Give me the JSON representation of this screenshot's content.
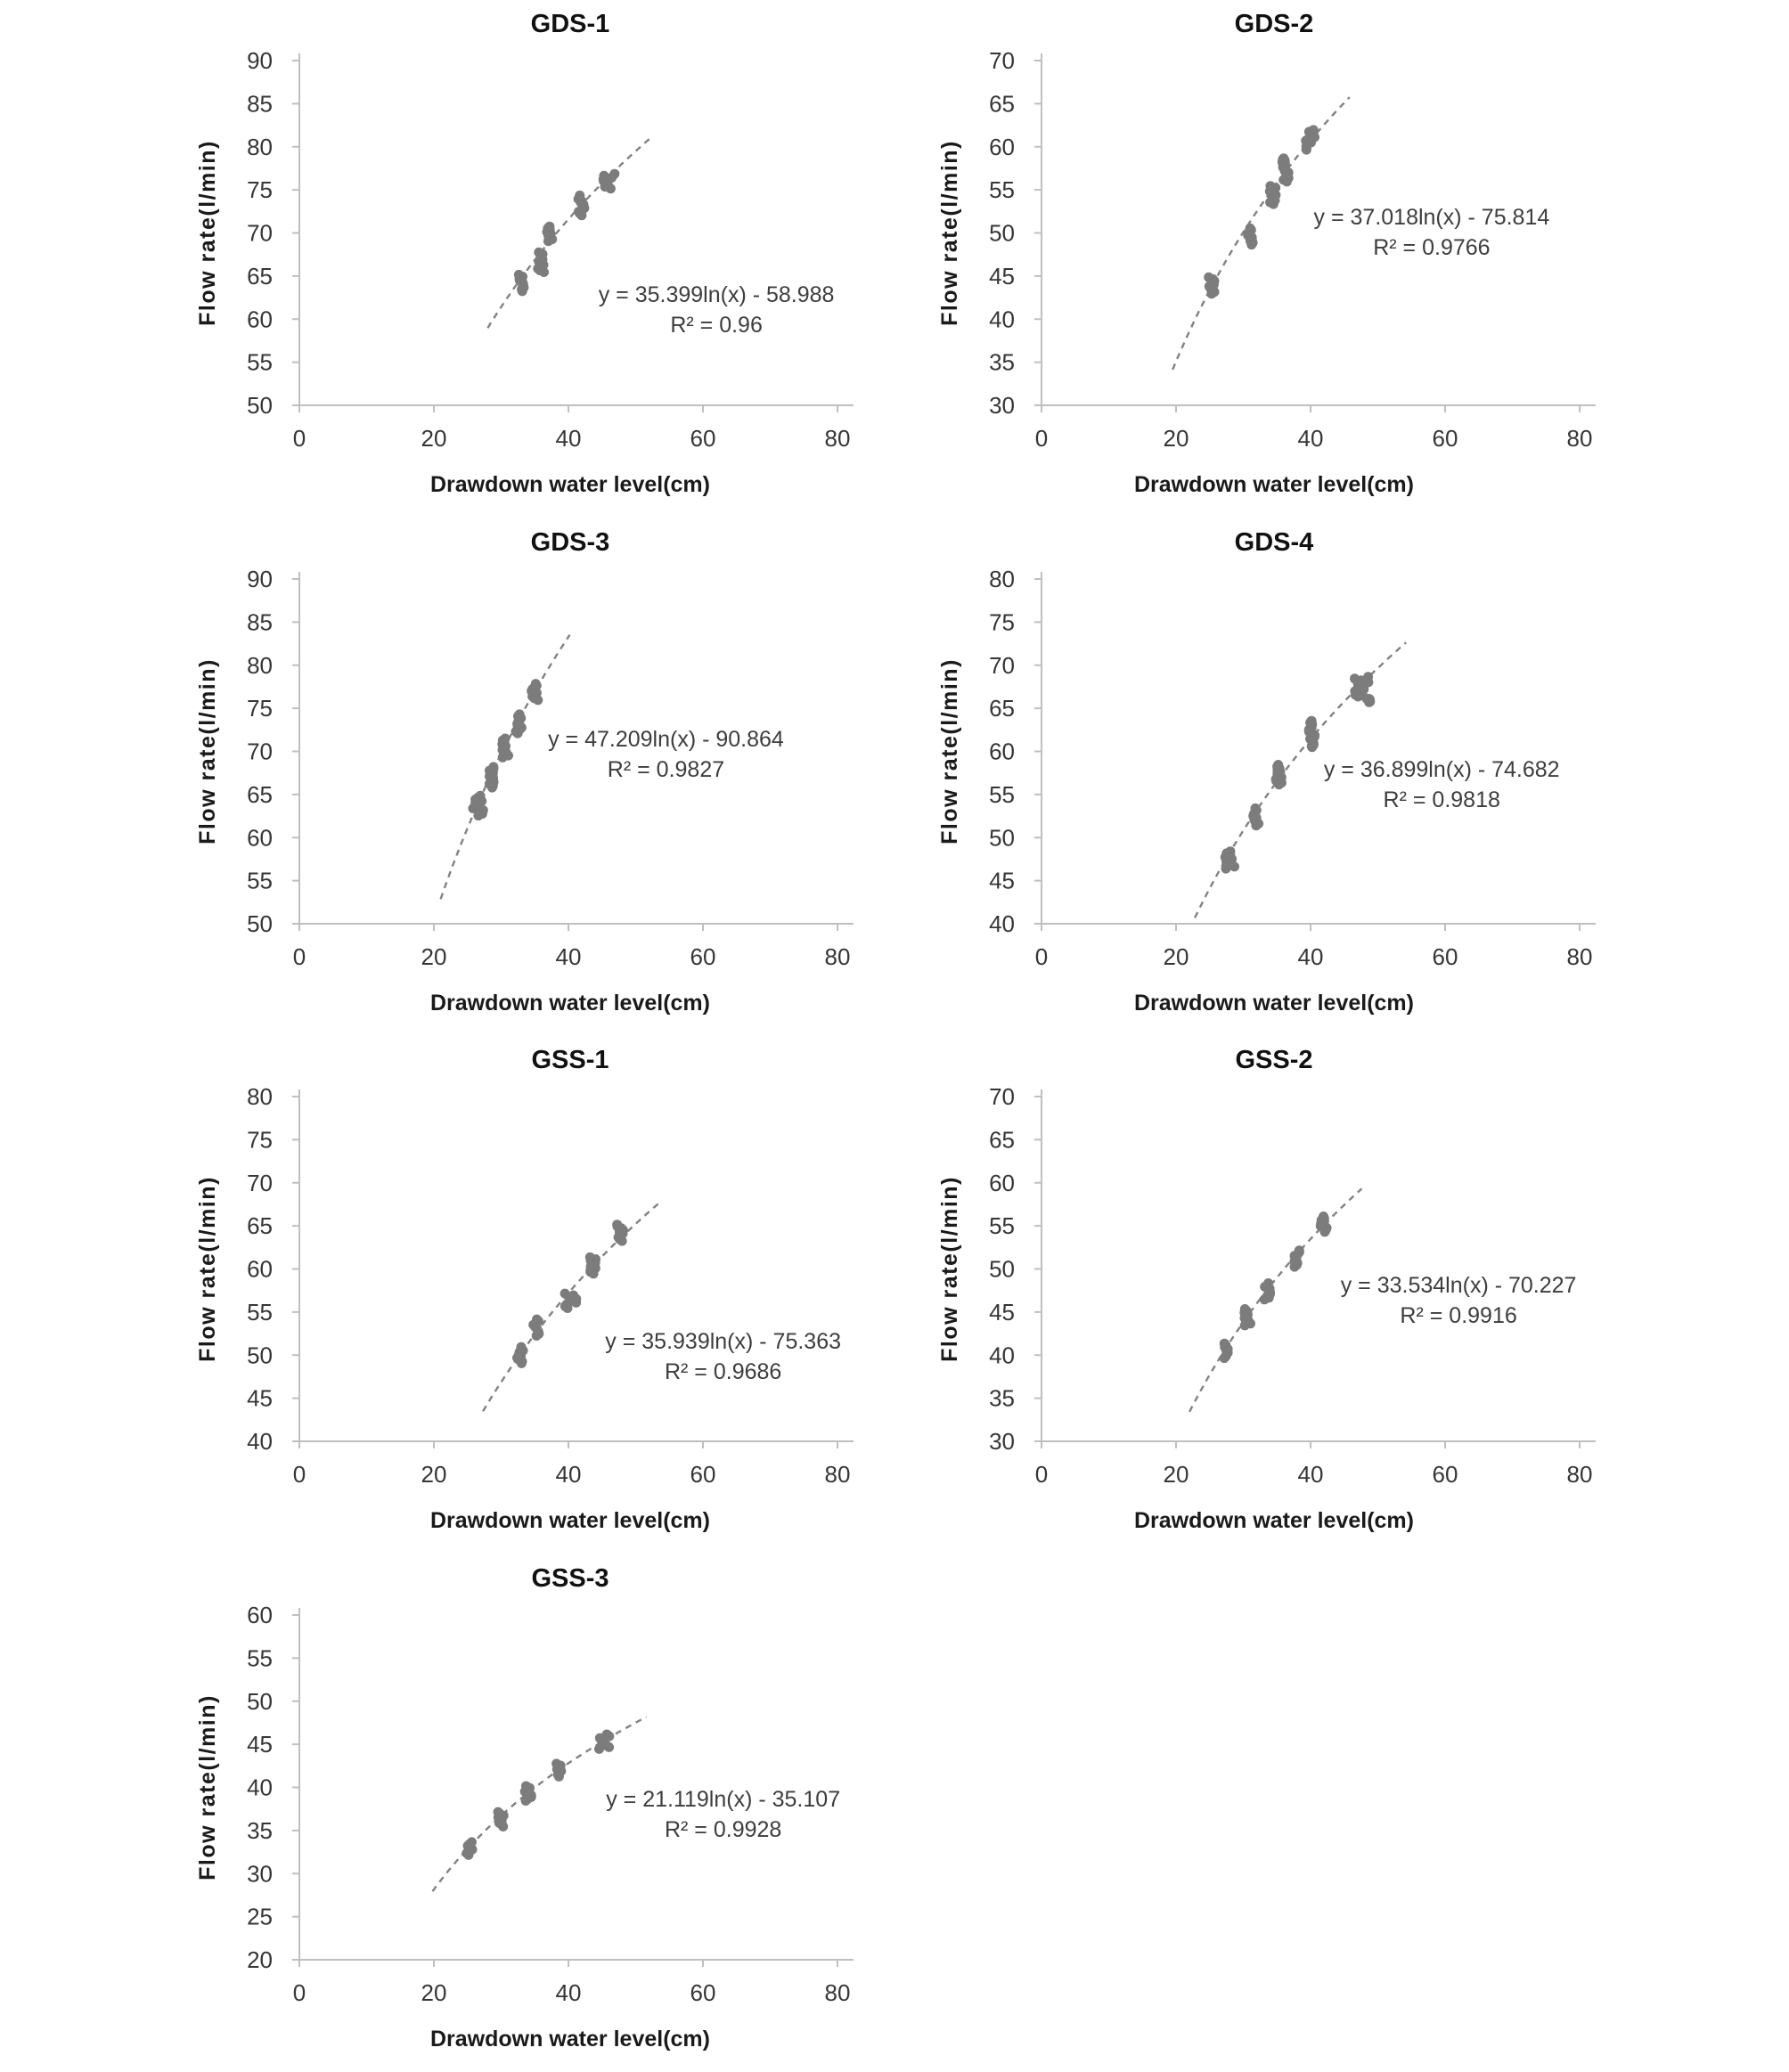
{
  "style": {
    "background": "#ffffff",
    "marker_color": "#7c7c7c",
    "trend_color": "#828282",
    "axis_color": "#bfbfbf",
    "tick_label_color": "#363636",
    "title_color": "#111111",
    "axis_title_color": "#1a1a1a",
    "equation_color": "#3d3d3d"
  },
  "chart_data": [
    {
      "type": "scatter",
      "id": "gds-1",
      "title": "GDS-1",
      "xlabel": "Drawdown water level(cm)",
      "ylabel": "Flow rate(l/min)",
      "column": 1,
      "xlim": [
        0,
        80
      ],
      "xticks": [
        0,
        20,
        40,
        60,
        80
      ],
      "ylim": [
        50,
        90
      ],
      "yticks": [
        50,
        55,
        60,
        65,
        70,
        75,
        80,
        85,
        90
      ],
      "grid": false,
      "legend": "none",
      "trendline": {
        "style": "dashed",
        "model": "logarithmic",
        "a": 35.399,
        "b": -58.988,
        "x_range": [
          28,
          52.2
        ]
      },
      "equation": "y = 35.399ln(x) - 58.988",
      "r2_label": "R² = 0.96",
      "equation_anchor": [
        62,
        62.8
      ],
      "clusters": [
        {
          "x": 33,
          "y": 64.2,
          "h": 1.9
        },
        {
          "x": 35.9,
          "y": 66.6,
          "h": 2.3
        },
        {
          "x": 37.2,
          "y": 69.9,
          "h": 1.7
        },
        {
          "x": 41.9,
          "y": 73.2,
          "h": 2.3
        },
        {
          "x": 46.1,
          "y": 76.0,
          "h": 1.7,
          "w": 1.9
        }
      ]
    },
    {
      "type": "scatter",
      "id": "gds-2",
      "title": "GDS-2",
      "xlabel": "Drawdown water level(cm)",
      "ylabel": "Flow rate(l/min)",
      "column": 2,
      "xlim": [
        0,
        80
      ],
      "xticks": [
        0,
        20,
        40,
        60,
        80
      ],
      "ylim": [
        30,
        70
      ],
      "yticks": [
        30,
        35,
        40,
        45,
        50,
        55,
        60,
        65,
        70
      ],
      "grid": false,
      "legend": "none",
      "trendline": {
        "style": "dashed",
        "model": "logarithmic",
        "a": 37.018,
        "b": -75.814,
        "x_range": [
          19.5,
          45.8
        ]
      },
      "equation": "y = 37.018ln(x) - 75.814",
      "r2_label": "R² = 0.9766",
      "equation_anchor": [
        58,
        51.8
      ],
      "clusters": [
        {
          "x": 25,
          "y": 43.9,
          "h": 1.9,
          "w": 1.5
        },
        {
          "x": 31,
          "y": 49.6,
          "h": 1.9
        },
        {
          "x": 34.4,
          "y": 54.4,
          "h": 2.1
        },
        {
          "x": 36.3,
          "y": 57.1,
          "h": 2.3
        },
        {
          "x": 36.0,
          "y": 58.4,
          "h": 0.5,
          "w": 0.4
        },
        {
          "x": 40,
          "y": 60.8,
          "h": 2.3,
          "w": 1.4
        }
      ]
    },
    {
      "type": "scatter",
      "id": "gds-3",
      "title": "GDS-3",
      "xlabel": "Drawdown water level(cm)",
      "ylabel": "Flow rate(l/min)",
      "column": 1,
      "xlim": [
        0,
        80
      ],
      "xticks": [
        0,
        20,
        40,
        60,
        80
      ],
      "ylim": [
        50,
        90
      ],
      "yticks": [
        50,
        55,
        60,
        65,
        70,
        75,
        80,
        85,
        90
      ],
      "grid": false,
      "legend": "none",
      "trendline": {
        "style": "dashed",
        "model": "logarithmic",
        "a": 47.209,
        "b": -90.864,
        "x_range": [
          21,
          40.2
        ]
      },
      "equation": "y = 47.209ln(x) - 90.864",
      "r2_label": "R² = 0.9827",
      "equation_anchor": [
        54.5,
        71.4
      ],
      "clusters": [
        {
          "x": 26.6,
          "y": 63.7,
          "h": 2.3,
          "w": 1.6
        },
        {
          "x": 28.6,
          "y": 67.0,
          "h": 2.4
        },
        {
          "x": 30.6,
          "y": 70.4,
          "h": 2.2
        },
        {
          "x": 32.6,
          "y": 73.2,
          "h": 2.2
        },
        {
          "x": 35,
          "y": 76.9,
          "h": 1.9
        }
      ]
    },
    {
      "type": "scatter",
      "id": "gds-4",
      "title": "GDS-4",
      "xlabel": "Drawdown water level(cm)",
      "ylabel": "Flow rate(l/min)",
      "column": 2,
      "xlim": [
        0,
        80
      ],
      "xticks": [
        0,
        20,
        40,
        60,
        80
      ],
      "ylim": [
        40,
        80
      ],
      "yticks": [
        40,
        45,
        50,
        55,
        60,
        65,
        70,
        75,
        80
      ],
      "grid": false,
      "legend": "none",
      "trendline": {
        "style": "dashed",
        "model": "logarithmic",
        "a": 36.899,
        "b": -74.682,
        "x_range": [
          22.8,
          54.2
        ]
      },
      "equation": "y = 36.899ln(x) - 74.682",
      "r2_label": "R² = 0.9818",
      "equation_anchor": [
        59.5,
        57.9
      ],
      "clusters": [
        {
          "x": 28,
          "y": 47.4,
          "h": 2.0,
          "w": 1.5
        },
        {
          "x": 31.8,
          "y": 52.4,
          "h": 2.0
        },
        {
          "x": 35.3,
          "y": 57.3,
          "h": 2.3
        },
        {
          "x": 40.2,
          "y": 62.5,
          "h": 2.1
        },
        {
          "x": 40.3,
          "y": 60.7,
          "h": 0.4,
          "w": 0.3
        },
        {
          "x": 47.6,
          "y": 67.4,
          "h": 2.5,
          "w": 2.2
        },
        {
          "x": 48.7,
          "y": 65.9,
          "h": 0.4,
          "w": 0.3
        }
      ]
    },
    {
      "type": "scatter",
      "id": "gss-1",
      "title": "GSS-1",
      "xlabel": "Drawdown water level(cm)",
      "ylabel": "Flow rate(l/min)",
      "column": 1,
      "xlim": [
        0,
        80
      ],
      "xticks": [
        0,
        20,
        40,
        60,
        80
      ],
      "ylim": [
        40,
        80
      ],
      "yticks": [
        40,
        45,
        50,
        55,
        60,
        65,
        70,
        75,
        80
      ],
      "grid": false,
      "legend": "none",
      "trendline": {
        "style": "dashed",
        "model": "logarithmic",
        "a": 35.939,
        "b": -75.363,
        "x_range": [
          27.3,
          53.6
        ]
      },
      "equation": "y = 35.939ln(x) - 75.363",
      "r2_label": "R² = 0.9686",
      "equation_anchor": [
        63,
        51.6
      ],
      "clusters": [
        {
          "x": 32.8,
          "y": 50.0,
          "h": 1.9
        },
        {
          "x": 35.2,
          "y": 53.2,
          "h": 1.9
        },
        {
          "x": 40.3,
          "y": 56.3,
          "h": 1.7,
          "w": 1.8
        },
        {
          "x": 43.6,
          "y": 60.4,
          "h": 1.9
        },
        {
          "x": 47.7,
          "y": 64.2,
          "h": 1.9
        }
      ]
    },
    {
      "type": "scatter",
      "id": "gss-2",
      "title": "GSS-2",
      "xlabel": "Drawdown water level(cm)",
      "ylabel": "Flow rate(l/min)",
      "column": 2,
      "xlim": [
        0,
        80
      ],
      "xticks": [
        0,
        20,
        40,
        60,
        80
      ],
      "ylim": [
        30,
        70
      ],
      "yticks": [
        30,
        35,
        40,
        45,
        50,
        55,
        60,
        65,
        70
      ],
      "grid": false,
      "legend": "none",
      "trendline": {
        "style": "dashed",
        "model": "logarithmic",
        "a": 33.534,
        "b": -70.227,
        "x_range": [
          22,
          47.6
        ]
      },
      "equation": "y = 33.534ln(x) - 70.227",
      "r2_label": "R² = 0.9916",
      "equation_anchor": [
        62,
        48.1
      ],
      "clusters": [
        {
          "x": 27.5,
          "y": 40.5,
          "h": 1.7
        },
        {
          "x": 30.6,
          "y": 44.4,
          "h": 1.9
        },
        {
          "x": 33.6,
          "y": 47.4,
          "h": 1.9
        },
        {
          "x": 38,
          "y": 51.2,
          "h": 1.9
        },
        {
          "x": 42,
          "y": 55.2,
          "h": 1.8,
          "w": 1.5
        }
      ]
    },
    {
      "type": "scatter",
      "id": "gss-3",
      "title": "GSS-3",
      "xlabel": "Drawdown water level(cm)",
      "ylabel": "Flow rate(l/min)",
      "column": 1,
      "xlim": [
        0,
        80
      ],
      "xticks": [
        0,
        20,
        40,
        60,
        80
      ],
      "ylim": [
        20,
        60
      ],
      "yticks": [
        20,
        25,
        30,
        35,
        40,
        45,
        50,
        55,
        60
      ],
      "grid": false,
      "legend": "none",
      "trendline": {
        "style": "dashed",
        "model": "logarithmic",
        "a": 21.119,
        "b": -35.107,
        "x_range": [
          19.8,
          51.6
        ]
      },
      "equation": "y = 21.119ln(x) - 35.107",
      "r2_label": "R² = 0.9928",
      "equation_anchor": [
        63,
        38.6
      ],
      "clusters": [
        {
          "x": 25.6,
          "y": 32.9,
          "h": 1.5,
          "w": 1.5
        },
        {
          "x": 30,
          "y": 36.3,
          "h": 1.7
        },
        {
          "x": 34,
          "y": 39.3,
          "h": 1.7
        },
        {
          "x": 38.6,
          "y": 42.0,
          "h": 1.5
        },
        {
          "x": 45.6,
          "y": 45.3,
          "h": 1.7,
          "w": 2.3
        }
      ]
    }
  ]
}
